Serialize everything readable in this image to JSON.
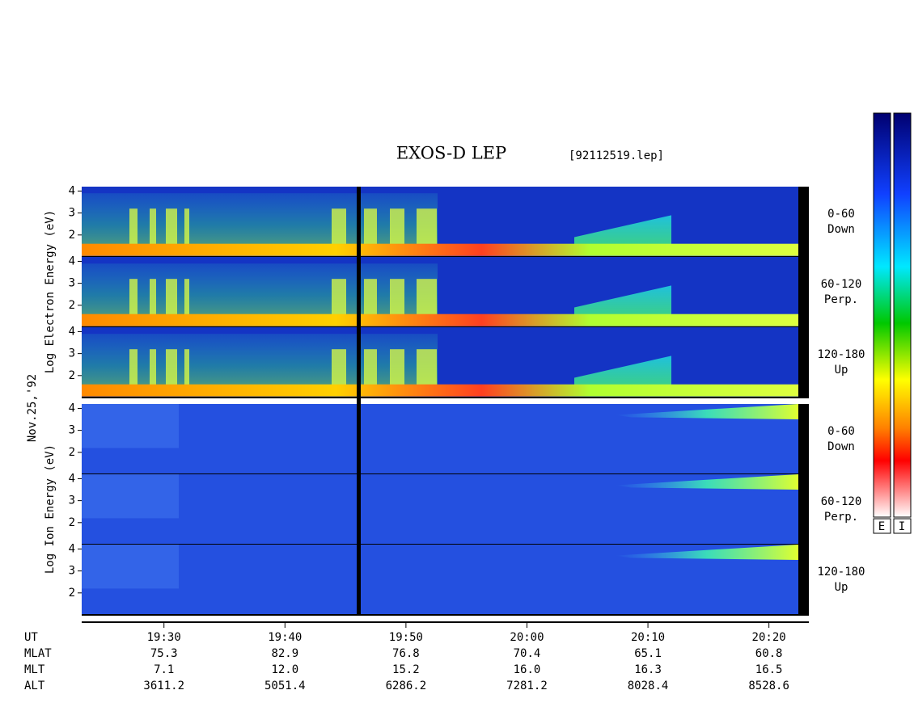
{
  "chart_data": {
    "type": "spectrogram",
    "title": "EXOS-D LEP",
    "file_label": "[92112519.lep]",
    "date_label": "Nov.25,'92",
    "electron_axis_label": "Log Electron Energy (eV)",
    "ion_axis_label": "Log Ion Energy (eV)",
    "electron_panels": [
      {
        "angle": "0-60",
        "direction": "Down"
      },
      {
        "angle": "60-120",
        "direction": "Perp."
      },
      {
        "angle": "120-180",
        "direction": "Up"
      }
    ],
    "ion_panels": [
      {
        "angle": "0-60",
        "direction": "Down"
      },
      {
        "angle": "60-120",
        "direction": "Perp."
      },
      {
        "angle": "120-180",
        "direction": "Up"
      }
    ],
    "ylim": [
      1,
      4.2
    ],
    "yticks": [
      2,
      3,
      4
    ],
    "xlim": [
      1163.2,
      1223.3
    ],
    "xticks": [
      {
        "value": 1170,
        "label": "19:30"
      },
      {
        "value": 1180,
        "label": "19:40"
      },
      {
        "value": 1190,
        "label": "19:50"
      },
      {
        "value": 1200,
        "label": "20:00"
      },
      {
        "value": 1210,
        "label": "20:10"
      },
      {
        "value": 1220,
        "label": "20:20"
      }
    ],
    "time_row_name": "UT",
    "orbit_rows": [
      {
        "name": "MLAT",
        "values": [
          "75.3",
          "82.9",
          "76.8",
          "70.4",
          "65.1",
          "60.8"
        ]
      },
      {
        "name": "MLT",
        "values": [
          "7.1",
          "12.0",
          "15.2",
          "16.0",
          "16.3",
          "16.5"
        ]
      },
      {
        "name": "ALT",
        "values": [
          "3611.2",
          "5051.4",
          "6286.2",
          "7281.2",
          "8028.4",
          "8528.6"
        ]
      }
    ],
    "colorbar_labels": [
      "E",
      "I"
    ]
  }
}
